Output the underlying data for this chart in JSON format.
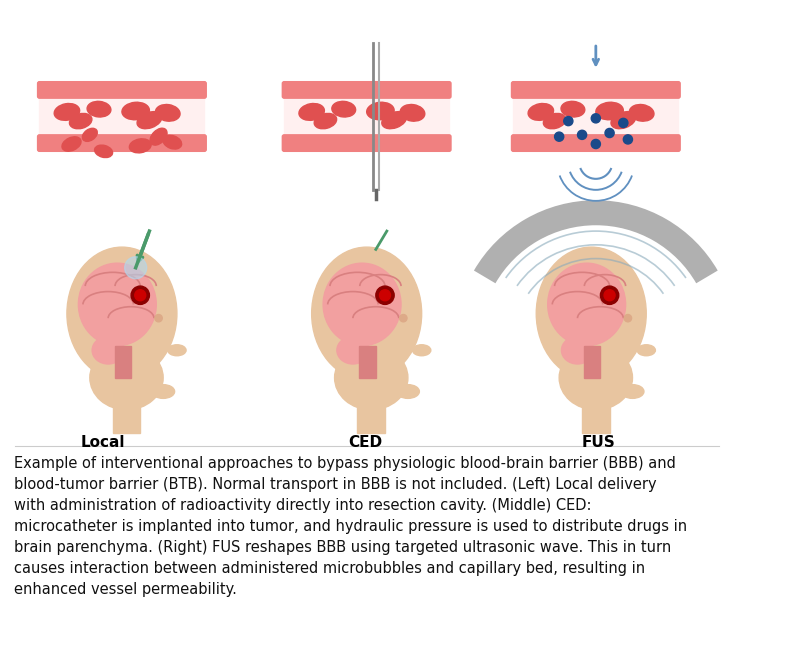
{
  "bg_color": "#ffffff",
  "label_local": "Local",
  "label_ced": "CED",
  "label_fus": "FUS",
  "label_fontsize": 11,
  "label_fontweight": "bold",
  "caption": "Example of interventional approaches to bypass physiologic blood-brain barrier (BBB) and\nblood-tumor barrier (BTB). Normal transport in BBB is not included. (Left) Local delivery\nwith administration of radioactivity directly into resection cavity. (Middle) CED:\nmicrocatheter is implanted into tumor, and hydraulic pressure is used to distribute drugs in\nbrain parenchyma. (Right) FUS reshapes BBB using targeted ultrasonic wave. This in turn\ncauses interaction between administered microbubbles and capillary bed, resulting in\nenhanced vessel permeability.",
  "caption_fontsize": 10.5,
  "skin_color": "#E8C5A0",
  "skin_dark": "#D4A882",
  "brain_color": "#F2A0A0",
  "brain_dark": "#D98080",
  "tumor_color": "#8B0000",
  "vessel_wall": "#F08080",
  "vessel_fill": "#FFF0F0",
  "rbc_color": "#E05050",
  "needle_color": "#4A9A6A",
  "blue_dot": "#1A4A8A",
  "wave_color": "#6090C0",
  "arc_color": "#B0B0B0"
}
